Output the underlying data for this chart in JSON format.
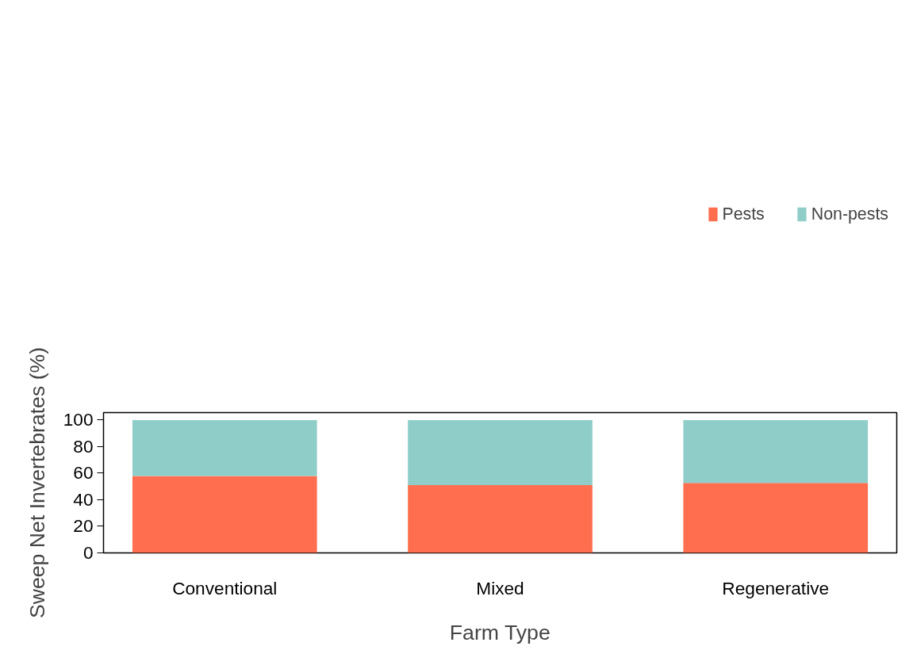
{
  "chart_data": {
    "type": "bar",
    "stacked": true,
    "xlabel": "Farm Type",
    "ylabel": "Sweep Net Invertebrates (%)",
    "categories": [
      "Conventional",
      "Mixed",
      "Regenerative"
    ],
    "series": [
      {
        "name": "Pests",
        "color": "#ff6e4f",
        "values": [
          57.8,
          51.0,
          52.7
        ]
      },
      {
        "name": "Non-pests",
        "color": "#8fcdc9",
        "values": [
          42.2,
          49.0,
          47.3
        ]
      }
    ],
    "ylim": [
      0,
      105.6
    ],
    "yticks": [
      0,
      20,
      40,
      60,
      80,
      100
    ],
    "grid": false,
    "legend": "top right"
  }
}
